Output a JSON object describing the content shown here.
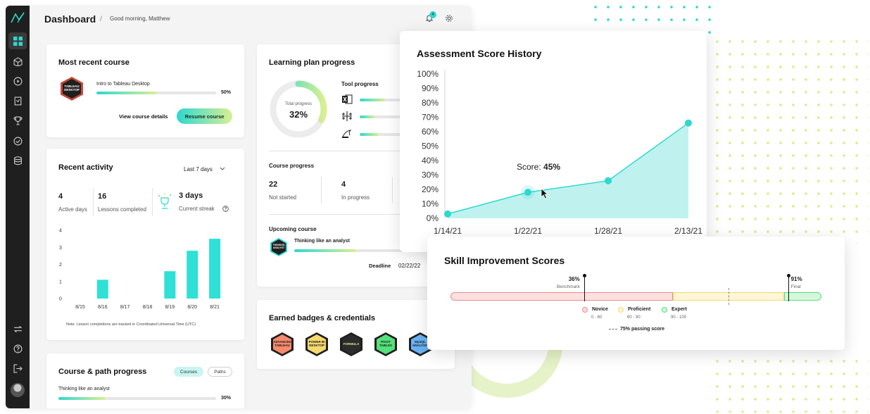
{
  "header": {
    "title": "Dashboard",
    "separator": "/",
    "greeting": "Good morning, Matthew",
    "notification_count": "4"
  },
  "sidebar": {
    "items": [
      {
        "icon": "logo-icon"
      },
      {
        "icon": "dashboard-icon",
        "active": true
      },
      {
        "icon": "box-icon"
      },
      {
        "icon": "play-icon"
      },
      {
        "icon": "document-icon"
      },
      {
        "icon": "trophy-icon"
      },
      {
        "icon": "check-circle-icon"
      },
      {
        "icon": "database-icon"
      },
      {
        "icon": "swap-icon"
      },
      {
        "icon": "help-icon"
      },
      {
        "icon": "logout-icon"
      },
      {
        "icon": "avatar"
      }
    ]
  },
  "recent_course": {
    "title": "Most recent course",
    "badge_text": "TABLEAU DESKTOP",
    "course_name": "Intro to Tableau Desktop",
    "progress_label": "50%",
    "progress": 0.5,
    "details_label": "View course details",
    "resume_label": "Resume course"
  },
  "learning_plan": {
    "title": "Learning plan progress",
    "total_label": "Total progress",
    "total_value": "32%",
    "total_fraction": 0.32,
    "tool_title": "Tool progress",
    "tools": [
      {
        "icon": "excel-icon",
        "progress": 0.6
      },
      {
        "icon": "tableau-icon",
        "progress": 0.35
      },
      {
        "icon": "mysql-icon",
        "progress": 0.45
      }
    ],
    "course_progress_title": "Course progress",
    "stats": [
      {
        "value": "22",
        "label": "Not started"
      },
      {
        "value": "4",
        "label": "In progress"
      }
    ],
    "upcoming_title": "Upcoming course",
    "upcoming_badge": "THINKING ANALYST",
    "upcoming_name": "Thinking like an analyst",
    "upcoming_progress": 0.55,
    "deadline_label": "Deadline",
    "deadline_value": "02/22/22"
  },
  "recent_activity": {
    "title": "Recent activity",
    "range": "Last 7 days",
    "stats": [
      {
        "value": "4",
        "label": "Active days"
      },
      {
        "value": "16",
        "label": "Lessons completed"
      },
      {
        "value": "3 days",
        "label": "Current streak"
      }
    ],
    "note": "Note: Lesson completions are tracked in Coordinated Universal Time (UTC)",
    "chart_data": {
      "type": "bar",
      "categories": [
        "8/15",
        "8/16",
        "8/17",
        "8/18",
        "8/19",
        "8/20",
        "8/21"
      ],
      "values": [
        0,
        1.1,
        0,
        0,
        1.6,
        2.8,
        3.5
      ],
      "ylim": [
        0,
        4
      ],
      "yticks": [
        "0",
        "1",
        "2",
        "3",
        "4"
      ],
      "color": "#2ee0d6"
    }
  },
  "earned_badges": {
    "title": "Earned badges & credentials",
    "badges": [
      {
        "text": "ADVANCED TABLEAU",
        "outer": "#1f1f1f",
        "inner": "#f58a6e"
      },
      {
        "text": "POWER BI DESKTOP",
        "outer": "#1f1f1f",
        "inner": "#f5d96e"
      },
      {
        "text": "FORMULA",
        "outer": "#1f1f1f",
        "inner": "#2c2c2c"
      },
      {
        "text": "PIVOT TABLES",
        "outer": "#1f1f1f",
        "inner": "#54e07a"
      },
      {
        "text": "MySQL ANALYSIS",
        "outer": "#1f1f1f",
        "inner": "#6ab3f5"
      }
    ]
  },
  "course_path": {
    "title": "Course & path progress",
    "tab_courses": "Courses",
    "tab_paths": "Paths",
    "item_name": "Thinking like an analyst",
    "item_progress": "30%",
    "item_fraction": 0.3
  },
  "assessment": {
    "title": "Assessment Score History",
    "tooltip_label": "Score: ",
    "tooltip_value": "45%",
    "chart_data": {
      "type": "area",
      "x": [
        "1/14/21",
        "1/22/21",
        "1/28/21",
        "2/13/21"
      ],
      "values": [
        3,
        18,
        26,
        66
      ],
      "ylim": [
        0,
        100
      ],
      "yticks": [
        "0%",
        "10%",
        "20%",
        "30%",
        "40%",
        "50%",
        "60%",
        "70%",
        "80%",
        "90%",
        "100%"
      ],
      "xticks": [
        "1/14/21",
        "1/22/21",
        "1/28/21",
        "2/13/21"
      ],
      "color": "#2ed8cf",
      "fill": "#bff2ef"
    }
  },
  "skill": {
    "title": "Skill Improvement Scores",
    "benchmark_value": "36%",
    "benchmark_label": "Benchmark",
    "benchmark": 0.36,
    "final_value": "91%",
    "final_label": "Final",
    "final": 0.91,
    "passing": 0.75,
    "passing_label": "75% passing score",
    "levels": [
      {
        "name": "Novice",
        "range": "0 - 60",
        "color": "#fde0e0",
        "border": "#f08a8a",
        "from": 0,
        "to": 0.6
      },
      {
        "name": "Proficient",
        "range": "60 - 90",
        "color": "#fdf6d8",
        "border": "#f5d96e",
        "from": 0.6,
        "to": 0.9
      },
      {
        "name": "Expert",
        "range": "90 - 100",
        "color": "#d6f7dc",
        "border": "#54e07a",
        "from": 0.9,
        "to": 1.0
      }
    ]
  }
}
